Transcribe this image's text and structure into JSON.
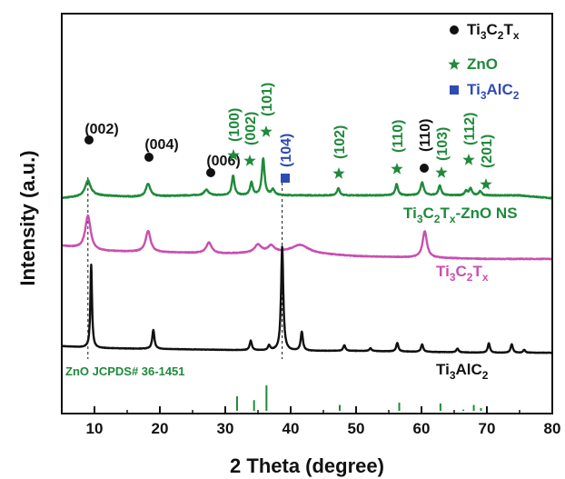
{
  "chart_data": {
    "type": "line",
    "xlabel": "2 Theta (degree)",
    "ylabel": "Intensity (a.u.)",
    "xlim": [
      5,
      80
    ],
    "x_ticks": [
      "10",
      "20",
      "30",
      "40",
      "50",
      "60",
      "70",
      "80"
    ],
    "grid": false,
    "legend_position": "top-right",
    "legend": [
      {
        "marker": "circle",
        "color": "#111111",
        "text": "Ti3C2Tx",
        "base": "Ti",
        "parts": [
          [
            "3",
            "sub"
          ],
          [
            "C",
            ""
          ],
          [
            "2",
            "sub"
          ],
          [
            "T",
            ""
          ],
          [
            "x",
            "sub"
          ]
        ]
      },
      {
        "marker": "star",
        "color": "#1f8a3b",
        "text": "ZnO",
        "base": "ZnO",
        "parts": []
      },
      {
        "marker": "square",
        "color": "#2f4bb4",
        "text": "Ti3AlC2",
        "base": "Ti",
        "parts": [
          [
            "3",
            "sub"
          ],
          [
            "AlC",
            ""
          ],
          [
            "2",
            "sub"
          ]
        ]
      }
    ],
    "series": [
      {
        "name": "Ti3C2Tx-ZnO NS",
        "color": "#1f8a3b",
        "baseline": 0.0,
        "noise": 0.6,
        "points": [
          [
            5,
            -2
          ],
          [
            10,
            0
          ],
          [
            16,
            -1
          ],
          [
            25,
            0
          ],
          [
            35,
            0
          ],
          [
            45,
            0
          ],
          [
            55,
            0
          ],
          [
            65,
            0
          ],
          [
            75,
            0
          ],
          [
            80,
            -2
          ]
        ],
        "peaks": [
          [
            9.0,
            11,
            0.5
          ],
          [
            18.2,
            9,
            0.4
          ],
          [
            27.1,
            4,
            0.4
          ],
          [
            31.2,
            14,
            0.25
          ],
          [
            34.0,
            9,
            0.25
          ],
          [
            35.8,
            26,
            0.25
          ],
          [
            37.3,
            4,
            0.3
          ],
          [
            47.3,
            5,
            0.25
          ],
          [
            56.2,
            8,
            0.25
          ],
          [
            60.1,
            9,
            0.3
          ],
          [
            62.8,
            7,
            0.25
          ],
          [
            66.8,
            3,
            0.25
          ],
          [
            67.5,
            5,
            0.25
          ],
          [
            69.0,
            3,
            0.25
          ]
        ]
      },
      {
        "name": "Ti3C2Tx",
        "color": "#c94fb0",
        "baseline": 0.0,
        "noise": 0.5,
        "points": [
          [
            5,
            8
          ],
          [
            10,
            4
          ],
          [
            20,
            3
          ],
          [
            30,
            2
          ],
          [
            40,
            3
          ],
          [
            50,
            0
          ],
          [
            60,
            -1
          ],
          [
            70,
            -2
          ],
          [
            80,
            -2
          ]
        ],
        "peaks": [
          [
            9.0,
            26,
            0.5
          ],
          [
            18.2,
            16,
            0.45
          ],
          [
            27.5,
            8,
            0.5
          ],
          [
            35.0,
            6,
            0.6
          ],
          [
            37.0,
            5,
            0.6
          ],
          [
            41.5,
            6,
            1.5
          ],
          [
            60.5,
            20,
            0.4
          ]
        ]
      },
      {
        "name": "Ti3AlC2",
        "color": "#111111",
        "baseline": 0.0,
        "noise": 0.4,
        "points": [
          [
            5,
            4
          ],
          [
            10,
            2
          ],
          [
            20,
            1
          ],
          [
            30,
            0
          ],
          [
            40,
            -1
          ],
          [
            50,
            -1
          ],
          [
            60,
            -2
          ],
          [
            70,
            -3
          ],
          [
            80,
            -3
          ]
        ],
        "peaks": [
          [
            9.5,
            88,
            0.15
          ],
          [
            19.0,
            20,
            0.2
          ],
          [
            33.9,
            10,
            0.2
          ],
          [
            36.7,
            5,
            0.2
          ],
          [
            38.7,
            110,
            0.2
          ],
          [
            41.7,
            20,
            0.2
          ],
          [
            48.2,
            6,
            0.2
          ],
          [
            52.2,
            3,
            0.2
          ],
          [
            56.3,
            9,
            0.2
          ],
          [
            60.1,
            8,
            0.2
          ],
          [
            65.5,
            4,
            0.2
          ],
          [
            70.3,
            10,
            0.2
          ],
          [
            73.8,
            9,
            0.2
          ],
          [
            75.7,
            3,
            0.2
          ]
        ]
      }
    ],
    "reference": {
      "name": "ZnO JCPDS# 36-1451",
      "color": "#1f8a3b",
      "sticks": [
        [
          31.8,
          57
        ],
        [
          34.4,
          42
        ],
        [
          36.3,
          100
        ],
        [
          47.5,
          23
        ],
        [
          56.6,
          32
        ],
        [
          62.9,
          29
        ],
        [
          66.4,
          5
        ],
        [
          68.0,
          23
        ],
        [
          69.1,
          11
        ]
      ]
    },
    "peak_labels": [
      {
        "text": "(002)",
        "x": 9.0,
        "marker": "circle",
        "color": "#111111",
        "rotate": 0
      },
      {
        "text": "(004)",
        "x": 18.2,
        "marker": "circle",
        "color": "#111111",
        "rotate": 0
      },
      {
        "text": "(006)",
        "x": 27.1,
        "marker": "circle",
        "color": "#111111",
        "rotate": 0
      },
      {
        "text": "(100)",
        "x": 31.2,
        "marker": "star",
        "color": "#1f8a3b",
        "rotate": -90
      },
      {
        "text": "(002)",
        "x": 34.0,
        "marker": "star",
        "color": "#1f8a3b",
        "rotate": -90
      },
      {
        "text": "(101)",
        "x": 35.8,
        "marker": "star",
        "color": "#1f8a3b",
        "rotate": -90
      },
      {
        "text": "(104)",
        "x": 38.7,
        "marker": "square",
        "color": "#2f4bb4",
        "rotate": -90
      },
      {
        "text": "(102)",
        "x": 47.3,
        "marker": "star",
        "color": "#1f8a3b",
        "rotate": -90
      },
      {
        "text": "(110)",
        "x": 56.2,
        "marker": "star",
        "color": "#1f8a3b",
        "rotate": -90
      },
      {
        "text": "(110)",
        "x": 60.1,
        "marker": "circle",
        "color": "#111111",
        "rotate": -90
      },
      {
        "text": "(103)",
        "x": 62.8,
        "marker": "star",
        "color": "#1f8a3b",
        "rotate": -90
      },
      {
        "text": "(112)",
        "x": 67.5,
        "marker": "star",
        "color": "#1f8a3b",
        "rotate": -90
      },
      {
        "text": "(201)",
        "x": 69.0,
        "marker": "star",
        "color": "#1f8a3b",
        "rotate": -90
      }
    ],
    "guide_lines": [
      9.0,
      38.7
    ]
  }
}
